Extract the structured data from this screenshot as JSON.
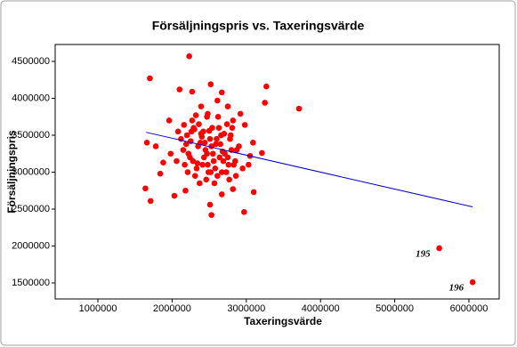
{
  "chart_data": {
    "type": "scatter",
    "title": "Försäljningspris vs. Taxeringsvärde",
    "x_label": "Taxeringsvärde",
    "y_label": "Försäljningspris",
    "xlim": [
      424000,
      6408000
    ],
    "ylim": [
      1283000,
      4729000
    ],
    "xticks": [
      1000000,
      2000000,
      3000000,
      4000000,
      5000000,
      6000000
    ],
    "yticks": [
      1500000,
      2000000,
      2500000,
      3000000,
      3500000,
      4000000,
      4500000
    ],
    "color": "#ff0000",
    "fit": {
      "color": "#0000cc",
      "x": [
        1650000,
        6050000
      ],
      "values": [
        3540000,
        2530000
      ]
    },
    "x": [
      2230000,
      1700000,
      2520000,
      3270000,
      2100000,
      2670000,
      2270000,
      3710000,
      3250000,
      1960000,
      1660000,
      1640000,
      1710000,
      1840000,
      1880000,
      2030000,
      2180000,
      2530000,
      2510000,
      2970000,
      3100000,
      2670000,
      2820000,
      3050000,
      3210000,
      3090000,
      2980000,
      2920000,
      2820000,
      2750000,
      2610000,
      2390000,
      2320000,
      2480000,
      2160000,
      2080000,
      2200000,
      2250000,
      2300000,
      2350000,
      2400000,
      2450000,
      2500000,
      2550000,
      2600000,
      2650000,
      2700000,
      2750000,
      2800000,
      2850000,
      2900000,
      2220000,
      2280000,
      2330000,
      2380000,
      2430000,
      2480000,
      2530000,
      2580000,
      2630000,
      2680000,
      2730000,
      2780000,
      2830000,
      2150000,
      2210000,
      2260000,
      2310000,
      2360000,
      2410000,
      2460000,
      2510000,
      2560000,
      2610000,
      2660000,
      2710000,
      2760000,
      2810000,
      2860000,
      2950000,
      2120000,
      2190000,
      2240000,
      2290000,
      2340000,
      2390000,
      2440000,
      2490000,
      2540000,
      2590000,
      2640000,
      2690000,
      2740000,
      2790000,
      2170000,
      2270000,
      2370000,
      2470000,
      2570000,
      2670000,
      2770000,
      2870000,
      2060000,
      1980000,
      1780000,
      3030000,
      2420000,
      2620000,
      2520000,
      2470000,
      5600000,
      6050000
    ],
    "values": [
      4570000,
      4270000,
      4190000,
      4160000,
      4120000,
      4080000,
      4090000,
      3860000,
      3940000,
      3700000,
      3400000,
      2780000,
      2610000,
      2980000,
      3130000,
      2680000,
      2750000,
      2420000,
      2560000,
      2460000,
      2730000,
      2700000,
      2770000,
      3220000,
      3260000,
      3400000,
      3640000,
      3790000,
      3700000,
      3890000,
      3970000,
      3890000,
      3770000,
      3790000,
      3640000,
      3550000,
      3500000,
      3420000,
      3580000,
      3350000,
      3480000,
      3300000,
      3560000,
      3250000,
      3450000,
      3380000,
      3520000,
      3200000,
      3300000,
      3150000,
      3350000,
      3250000,
      3150000,
      3050000,
      3400000,
      3200000,
      3100000,
      3350000,
      3050000,
      3600000,
      3280000,
      3000000,
      3450000,
      3100000,
      3300000,
      3000000,
      3550000,
      2950000,
      3650000,
      3100000,
      2900000,
      3450000,
      3150000,
      2950000,
      3500000,
      3250000,
      3100000,
      3600000,
      2950000,
      3050000,
      3450000,
      3380000,
      3200000,
      3600000,
      3120000,
      3520000,
      3400000,
      3000000,
      3600000,
      3380000,
      3200000,
      3150000,
      3650000,
      3500000,
      3100000,
      3700000,
      2850000,
      3750000,
      2850000,
      3000000,
      2900000,
      3300000,
      3150000,
      3250000,
      3350000,
      3100000,
      3550000,
      3750000,
      3000000,
      3250000,
      1970000,
      1510000
    ],
    "annotations": [
      {
        "text": "195",
        "x": 5600000,
        "y": 1970000
      },
      {
        "text": "196",
        "x": 6050000,
        "y": 1510000
      }
    ]
  }
}
